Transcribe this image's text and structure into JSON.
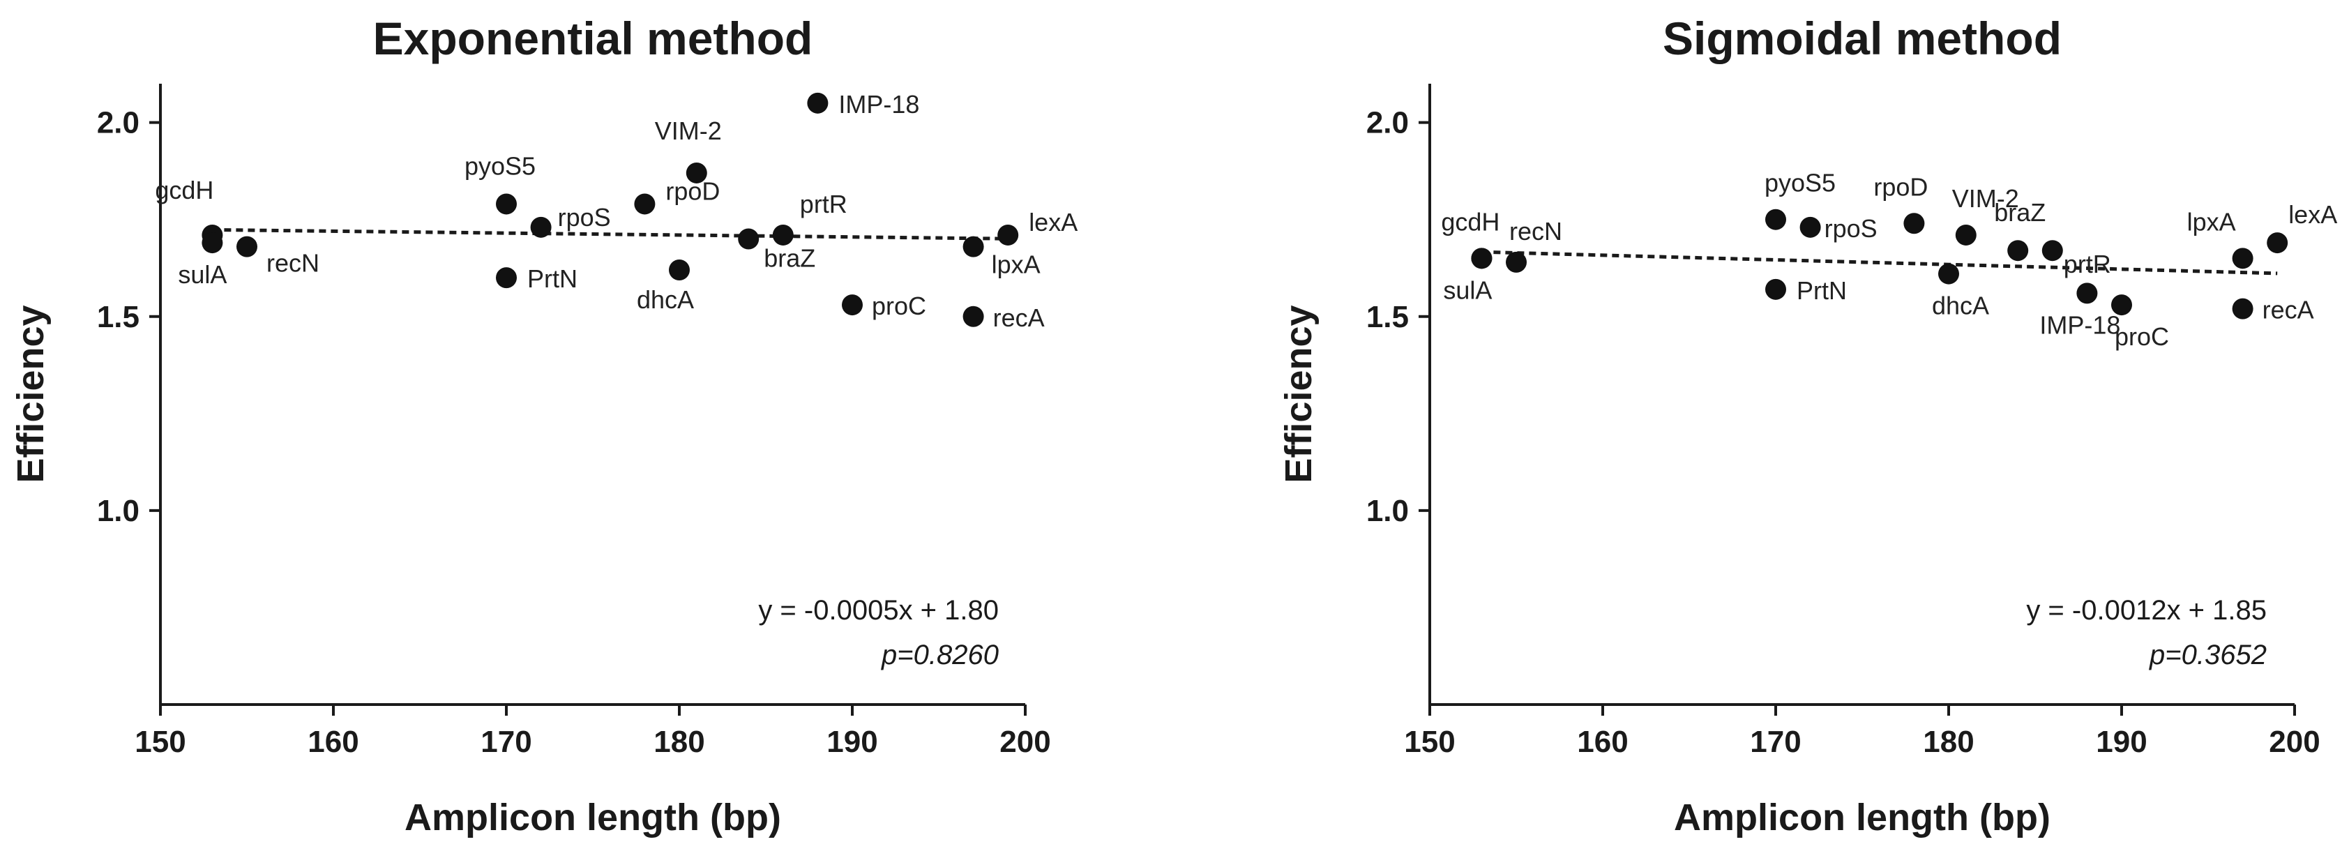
{
  "chart_data": [
    {
      "type": "scatter",
      "title": "Exponential method",
      "xlabel": "Amplicon length (bp)",
      "ylabel": "Efficiency",
      "xlim": [
        150,
        200
      ],
      "ylim": [
        0.5,
        2.1
      ],
      "xticks": [
        "150",
        "160",
        "170",
        "180",
        "190",
        "200"
      ],
      "yticks": [
        "1.0",
        "1.5",
        "2.0"
      ],
      "points": [
        {
          "label": "gcdH",
          "x": 153,
          "y": 1.71
        },
        {
          "label": "sulA",
          "x": 153,
          "y": 1.69
        },
        {
          "label": "recN",
          "x": 155,
          "y": 1.68
        },
        {
          "label": "pyoS5",
          "x": 170,
          "y": 1.79
        },
        {
          "label": "PrtN",
          "x": 170,
          "y": 1.6
        },
        {
          "label": "rpoS",
          "x": 172,
          "y": 1.73
        },
        {
          "label": "rpoD",
          "x": 178,
          "y": 1.79
        },
        {
          "label": "dhcA",
          "x": 180,
          "y": 1.62
        },
        {
          "label": "VIM-2",
          "x": 181,
          "y": 1.87
        },
        {
          "label": "braZ",
          "x": 184,
          "y": 1.7
        },
        {
          "label": "prtR",
          "x": 186,
          "y": 1.71
        },
        {
          "label": "IMP-18",
          "x": 188,
          "y": 2.05
        },
        {
          "label": "proC",
          "x": 190,
          "y": 1.53
        },
        {
          "label": "lpxA",
          "x": 197,
          "y": 1.68
        },
        {
          "label": "recA",
          "x": 197,
          "y": 1.5
        },
        {
          "label": "lexA",
          "x": 199,
          "y": 1.71
        }
      ],
      "trendline": {
        "slope": -0.0005,
        "intercept": 1.8,
        "x_range": [
          153,
          199
        ]
      },
      "equation": "y = -0.0005x + 1.80",
      "p_value": "p=0.8260"
    },
    {
      "type": "scatter",
      "title": "Sigmoidal method",
      "xlabel": "Amplicon length (bp)",
      "ylabel": "Efficiency",
      "xlim": [
        150,
        200
      ],
      "ylim": [
        0.5,
        2.1
      ],
      "xticks": [
        "150",
        "160",
        "170",
        "180",
        "190",
        "200"
      ],
      "yticks": [
        "1.0",
        "1.5",
        "2.0"
      ],
      "points": [
        {
          "label": "gcdH",
          "x": 153,
          "y": 1.65
        },
        {
          "label": "sulA",
          "x": 153,
          "y": 1.65
        },
        {
          "label": "recN",
          "x": 155,
          "y": 1.64
        },
        {
          "label": "pyoS5",
          "x": 170,
          "y": 1.75
        },
        {
          "label": "PrtN",
          "x": 170,
          "y": 1.57
        },
        {
          "label": "rpoS",
          "x": 172,
          "y": 1.73
        },
        {
          "label": "rpoD",
          "x": 178,
          "y": 1.74
        },
        {
          "label": "dhcA",
          "x": 180,
          "y": 1.61
        },
        {
          "label": "VIM-2",
          "x": 181,
          "y": 1.71
        },
        {
          "label": "braZ",
          "x": 184,
          "y": 1.67
        },
        {
          "label": "prtR",
          "x": 186,
          "y": 1.67
        },
        {
          "label": "IMP-18",
          "x": 188,
          "y": 1.56
        },
        {
          "label": "proC",
          "x": 190,
          "y": 1.53
        },
        {
          "label": "lpxA",
          "x": 197,
          "y": 1.65
        },
        {
          "label": "recA",
          "x": 197,
          "y": 1.52
        },
        {
          "label": "lexA",
          "x": 199,
          "y": 1.69
        }
      ],
      "trendline": {
        "slope": -0.0012,
        "intercept": 1.85,
        "x_range": [
          153,
          199
        ]
      },
      "equation": "y = -0.0012x + 1.85",
      "p_value": "p=0.3652"
    }
  ]
}
